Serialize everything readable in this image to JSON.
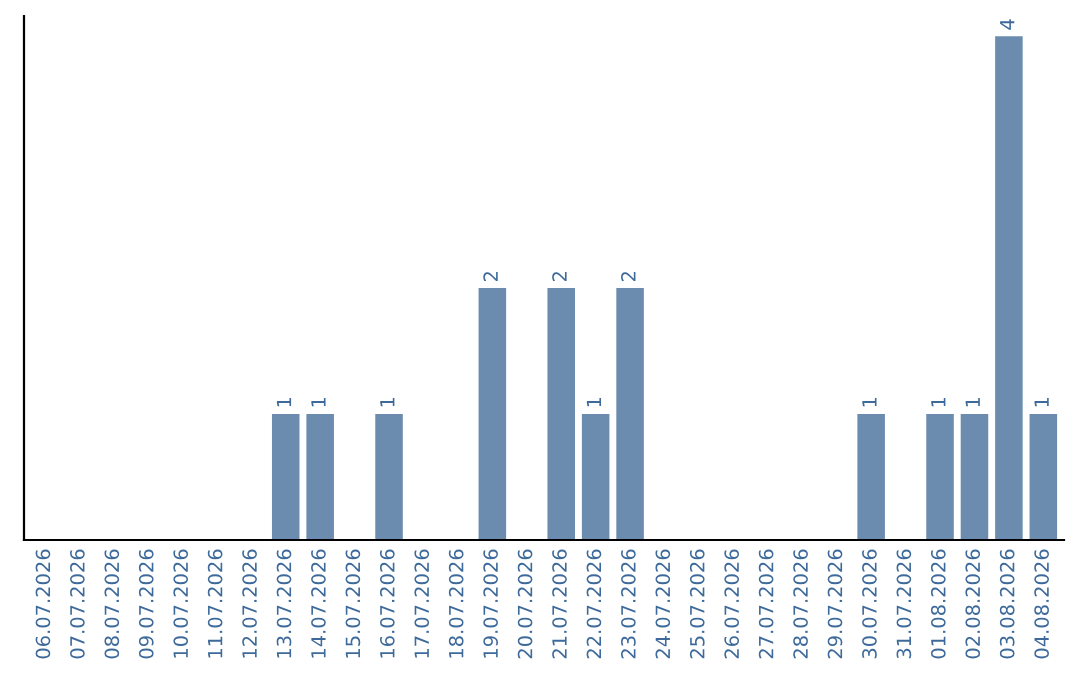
{
  "chart_data": {
    "type": "bar",
    "categories": [
      "06.07.2026",
      "07.07.2026",
      "08.07.2026",
      "09.07.2026",
      "10.07.2026",
      "11.07.2026",
      "12.07.2026",
      "13.07.2026",
      "14.07.2026",
      "15.07.2026",
      "16.07.2026",
      "17.07.2026",
      "18.07.2026",
      "19.07.2026",
      "20.07.2026",
      "21.07.2026",
      "22.07.2026",
      "23.07.2026",
      "24.07.2026",
      "25.07.2026",
      "26.07.2026",
      "27.07.2026",
      "28.07.2026",
      "29.07.2026",
      "30.07.2026",
      "31.07.2026",
      "01.08.2026",
      "02.08.2026",
      "03.08.2026",
      "04.08.2026"
    ],
    "values": [
      null,
      null,
      null,
      null,
      null,
      null,
      null,
      1,
      1,
      null,
      1,
      null,
      null,
      2,
      null,
      2,
      1,
      2,
      null,
      null,
      null,
      null,
      null,
      null,
      1,
      null,
      1,
      1,
      4,
      1
    ],
    "color": "#6b8cae",
    "data_labels": true,
    "tick_labels": "x",
    "grid": false,
    "legend": false
  }
}
